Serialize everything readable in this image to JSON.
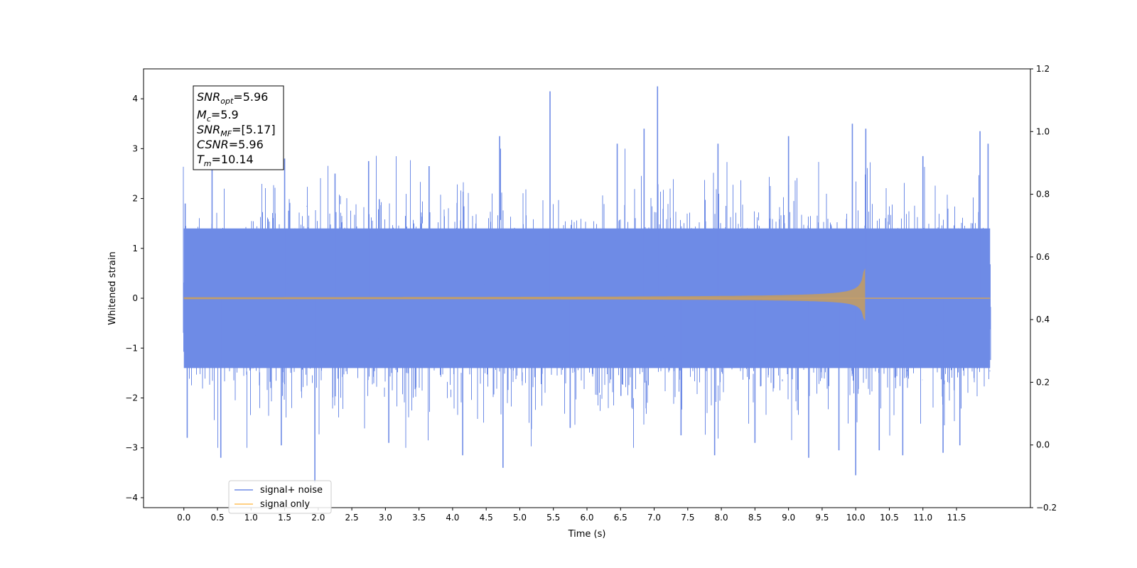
{
  "chart_data": {
    "type": "line",
    "xlabel": "Time (s)",
    "ylabel": "Whitened strain",
    "xlim": [
      -0.6,
      12.6
    ],
    "ylim": [
      -4.2,
      4.6
    ],
    "y2lim": [
      -0.2,
      1.2
    ],
    "x_ticks": [
      0.0,
      0.5,
      1.0,
      1.5,
      2.0,
      2.5,
      3.0,
      3.5,
      4.0,
      4.5,
      5.0,
      5.5,
      6.0,
      6.5,
      7.0,
      7.5,
      8.0,
      8.5,
      9.0,
      9.5,
      10.0,
      10.5,
      11.0,
      11.5
    ],
    "x_tick_labels": [
      "0.0",
      "0.5",
      "1.0",
      "1.5",
      "2.0",
      "2.5",
      "3.0",
      "3.5",
      "4.0",
      "4.5",
      "5.0",
      "5.5",
      "6.0",
      "6.5",
      "7.0",
      "7.5",
      "8.0",
      "8.5",
      "9.0",
      "9.5",
      "10.0",
      "10.5",
      "11.0",
      "11.5"
    ],
    "y_ticks": [
      -4,
      -3,
      -2,
      -1,
      0,
      1,
      2,
      3,
      4
    ],
    "y_tick_labels": [
      "−4",
      "−3",
      "−2",
      "−1",
      "0",
      "1",
      "2",
      "3",
      "4"
    ],
    "y2_ticks": [
      -0.2,
      0.0,
      0.2,
      0.4,
      0.6,
      0.8,
      1.0,
      1.2
    ],
    "y2_tick_labels": [
      "−0.2",
      "0.0",
      "0.2",
      "0.4",
      "0.6",
      "0.8",
      "1.0",
      "1.2"
    ],
    "legend": {
      "loc": "lower left"
    },
    "series": [
      {
        "name": "signal+ noise",
        "color": "#6e8be6",
        "x_range": [
          0.0,
          12.0
        ],
        "envelope_abs": 1.4,
        "peaks": [
          {
            "x": 0.02,
            "y": 1.9
          },
          {
            "x": 0.05,
            "y": -2.8
          },
          {
            "x": 0.42,
            "y": 2.65
          },
          {
            "x": 0.55,
            "y": -3.2
          },
          {
            "x": 1.5,
            "y": 2.8
          },
          {
            "x": 1.45,
            "y": -2.95
          },
          {
            "x": 1.95,
            "y": -3.7
          },
          {
            "x": 2.25,
            "y": 2.5
          },
          {
            "x": 2.75,
            "y": 2.75
          },
          {
            "x": 3.05,
            "y": -2.9
          },
          {
            "x": 3.65,
            "y": 2.65
          },
          {
            "x": 4.15,
            "y": -3.15
          },
          {
            "x": 4.7,
            "y": 3.25
          },
          {
            "x": 4.75,
            "y": -3.4
          },
          {
            "x": 5.45,
            "y": 4.15
          },
          {
            "x": 5.75,
            "y": -2.6
          },
          {
            "x": 6.45,
            "y": 3.1
          },
          {
            "x": 6.85,
            "y": 3.4
          },
          {
            "x": 7.05,
            "y": 4.25
          },
          {
            "x": 7.4,
            "y": -2.75
          },
          {
            "x": 7.95,
            "y": 3.1
          },
          {
            "x": 7.9,
            "y": -3.15
          },
          {
            "x": 8.5,
            "y": -2.9
          },
          {
            "x": 9.0,
            "y": 3.25
          },
          {
            "x": 9.3,
            "y": -3.2
          },
          {
            "x": 9.75,
            "y": -3.05
          },
          {
            "x": 9.95,
            "y": 3.5
          },
          {
            "x": 10.0,
            "y": -3.55
          },
          {
            "x": 10.15,
            "y": 3.4
          },
          {
            "x": 10.35,
            "y": -3.05
          },
          {
            "x": 10.7,
            "y": -3.15
          },
          {
            "x": 11.0,
            "y": 2.85
          },
          {
            "x": 11.3,
            "y": -3.1
          },
          {
            "x": 11.55,
            "y": -2.95
          },
          {
            "x": 11.85,
            "y": 3.35
          },
          {
            "x": 11.97,
            "y": 3.1
          }
        ]
      },
      {
        "name": "signal only",
        "color": "#ffc05a",
        "x_range": [
          0.0,
          12.0
        ],
        "merger_time": 10.14,
        "amplitude_start": 0.02,
        "amplitude_peak_pos": 0.6,
        "amplitude_peak_neg": -0.45
      }
    ],
    "annotation": {
      "lines": [
        {
          "base": "SNR",
          "sub": "opt",
          "rest": "=5.96"
        },
        {
          "base": "M",
          "sub": "c",
          "rest": "=5.9"
        },
        {
          "base": "SNR",
          "sub": "MF",
          "rest": "=[5.17]"
        },
        {
          "base": "CSNR",
          "sub": "",
          "rest": "=5.96"
        },
        {
          "base": "T",
          "sub": "m",
          "rest": "=10.14"
        }
      ]
    }
  }
}
